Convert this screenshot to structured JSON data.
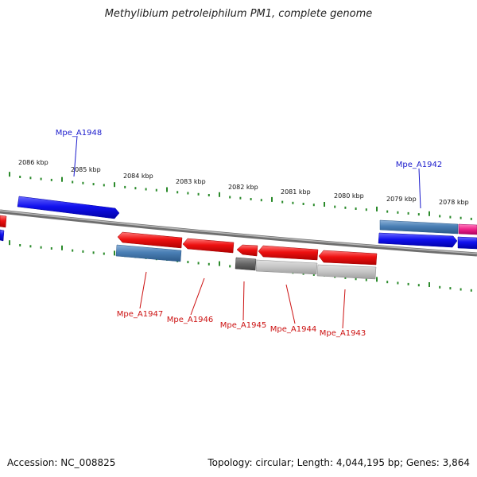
{
  "title": "Methylibium petroleiphilum PM1, complete genome",
  "footer": {
    "accession": "Accession: NC_008825",
    "summary": "Topology: circular; Length: 4,044,195 bp; Genes: 3,864"
  },
  "scale": {
    "tick_labels": [
      "2086 kbp",
      "2085 kbp",
      "2084 kbp",
      "2083 kbp",
      "2082 kbp",
      "2081 kbp",
      "2080 kbp",
      "2079 kbp",
      "2078 kbp"
    ],
    "tick_color": "#2a8a2a"
  },
  "colors": {
    "backbone": "#7a7a7a",
    "red": "#ee1111",
    "blue": "#1111ee",
    "steel": "#4a7fb5",
    "gray_dark": "#666666",
    "gray_light": "#c4c4c4",
    "pink": "#ee2288",
    "forward_label": "#1a1acc",
    "reverse_label": "#cc1111"
  },
  "gene_labels": {
    "forward": [
      "Mpe_A1948",
      "Mpe_A1942"
    ],
    "reverse": [
      "Mpe_A1947",
      "Mpe_A1946",
      "Mpe_A1945",
      "Mpe_A1944",
      "Mpe_A1943"
    ]
  }
}
